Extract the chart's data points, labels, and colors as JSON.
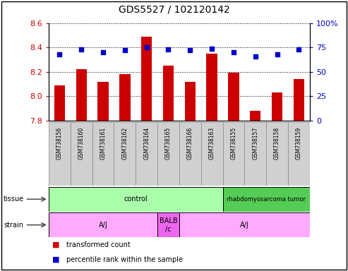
{
  "title": "GDS5527 / 102120142",
  "samples": [
    "GSM738156",
    "GSM738160",
    "GSM738161",
    "GSM738162",
    "GSM738164",
    "GSM738165",
    "GSM738166",
    "GSM738163",
    "GSM738155",
    "GSM738157",
    "GSM738158",
    "GSM738159"
  ],
  "transformed_count": [
    8.09,
    8.22,
    8.12,
    8.18,
    8.49,
    8.25,
    8.12,
    8.35,
    8.19,
    7.88,
    8.03,
    8.14
  ],
  "percentile_rank": [
    68,
    73,
    70,
    72,
    75,
    73,
    72,
    74,
    70,
    66,
    68,
    73
  ],
  "ylim": [
    7.8,
    8.6
  ],
  "y2lim": [
    0,
    100
  ],
  "yticks": [
    7.8,
    8.0,
    8.2,
    8.4,
    8.6
  ],
  "y2ticks": [
    0,
    25,
    50,
    75,
    100
  ],
  "bar_color": "#cc0000",
  "scatter_color": "#0000cc",
  "tissue_groups": [
    {
      "label": "control",
      "start": 0,
      "end": 8,
      "color": "#aaffaa"
    },
    {
      "label": "rhabdomyosarcoma tumor",
      "start": 8,
      "end": 12,
      "color": "#55cc55"
    }
  ],
  "strain_groups": [
    {
      "label": "A/J",
      "start": 0,
      "end": 5,
      "color": "#ffaaff"
    },
    {
      "label": "BALB\n/c",
      "start": 5,
      "end": 6,
      "color": "#ee66ee"
    },
    {
      "label": "A/J",
      "start": 6,
      "end": 12,
      "color": "#ffaaff"
    }
  ],
  "ylabel_color_left": "#cc0000",
  "ylabel_color_right": "#0000cc",
  "bar_width": 0.5,
  "sample_bg_color": "#d0d0d0",
  "figure_bg": "#ffffff"
}
